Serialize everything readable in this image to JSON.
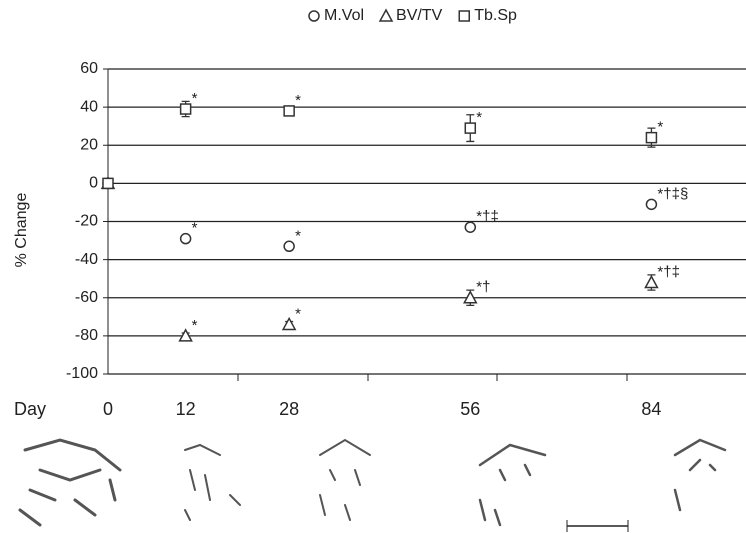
{
  "chart_data": {
    "type": "scatter",
    "x_label": "Day",
    "y_label": "% Change",
    "x": [
      0,
      12,
      28,
      56,
      84
    ],
    "xlim": [
      0,
      98
    ],
    "ylim": [
      -100,
      60
    ],
    "yticks": [
      -100,
      -80,
      -60,
      -40,
      -20,
      0,
      20,
      40,
      60
    ],
    "grid": true,
    "series": [
      {
        "name": "M.Vol",
        "marker": "circle",
        "color": "#333333",
        "values": [
          0,
          -29,
          -33,
          -23,
          -11
        ],
        "errors": [
          1,
          1.5,
          1,
          1,
          1.5
        ],
        "annotations": [
          null,
          "*",
          "*",
          "*†‡",
          "*†‡§"
        ]
      },
      {
        "name": "BV/TV",
        "marker": "triangle",
        "color": "#333333",
        "values": [
          0,
          -80,
          -74,
          -60,
          -52
        ],
        "errors": [
          1,
          1.5,
          1.5,
          4,
          4
        ],
        "annotations": [
          null,
          "*",
          "*",
          "*†",
          "*†‡"
        ]
      },
      {
        "name": "Tb.Sp",
        "marker": "square",
        "color": "#333333",
        "values": [
          0,
          39,
          38,
          29,
          24
        ],
        "errors": [
          1,
          4,
          1,
          7,
          5
        ],
        "annotations": [
          null,
          "*",
          "*",
          "*",
          "*"
        ]
      }
    ]
  }
}
